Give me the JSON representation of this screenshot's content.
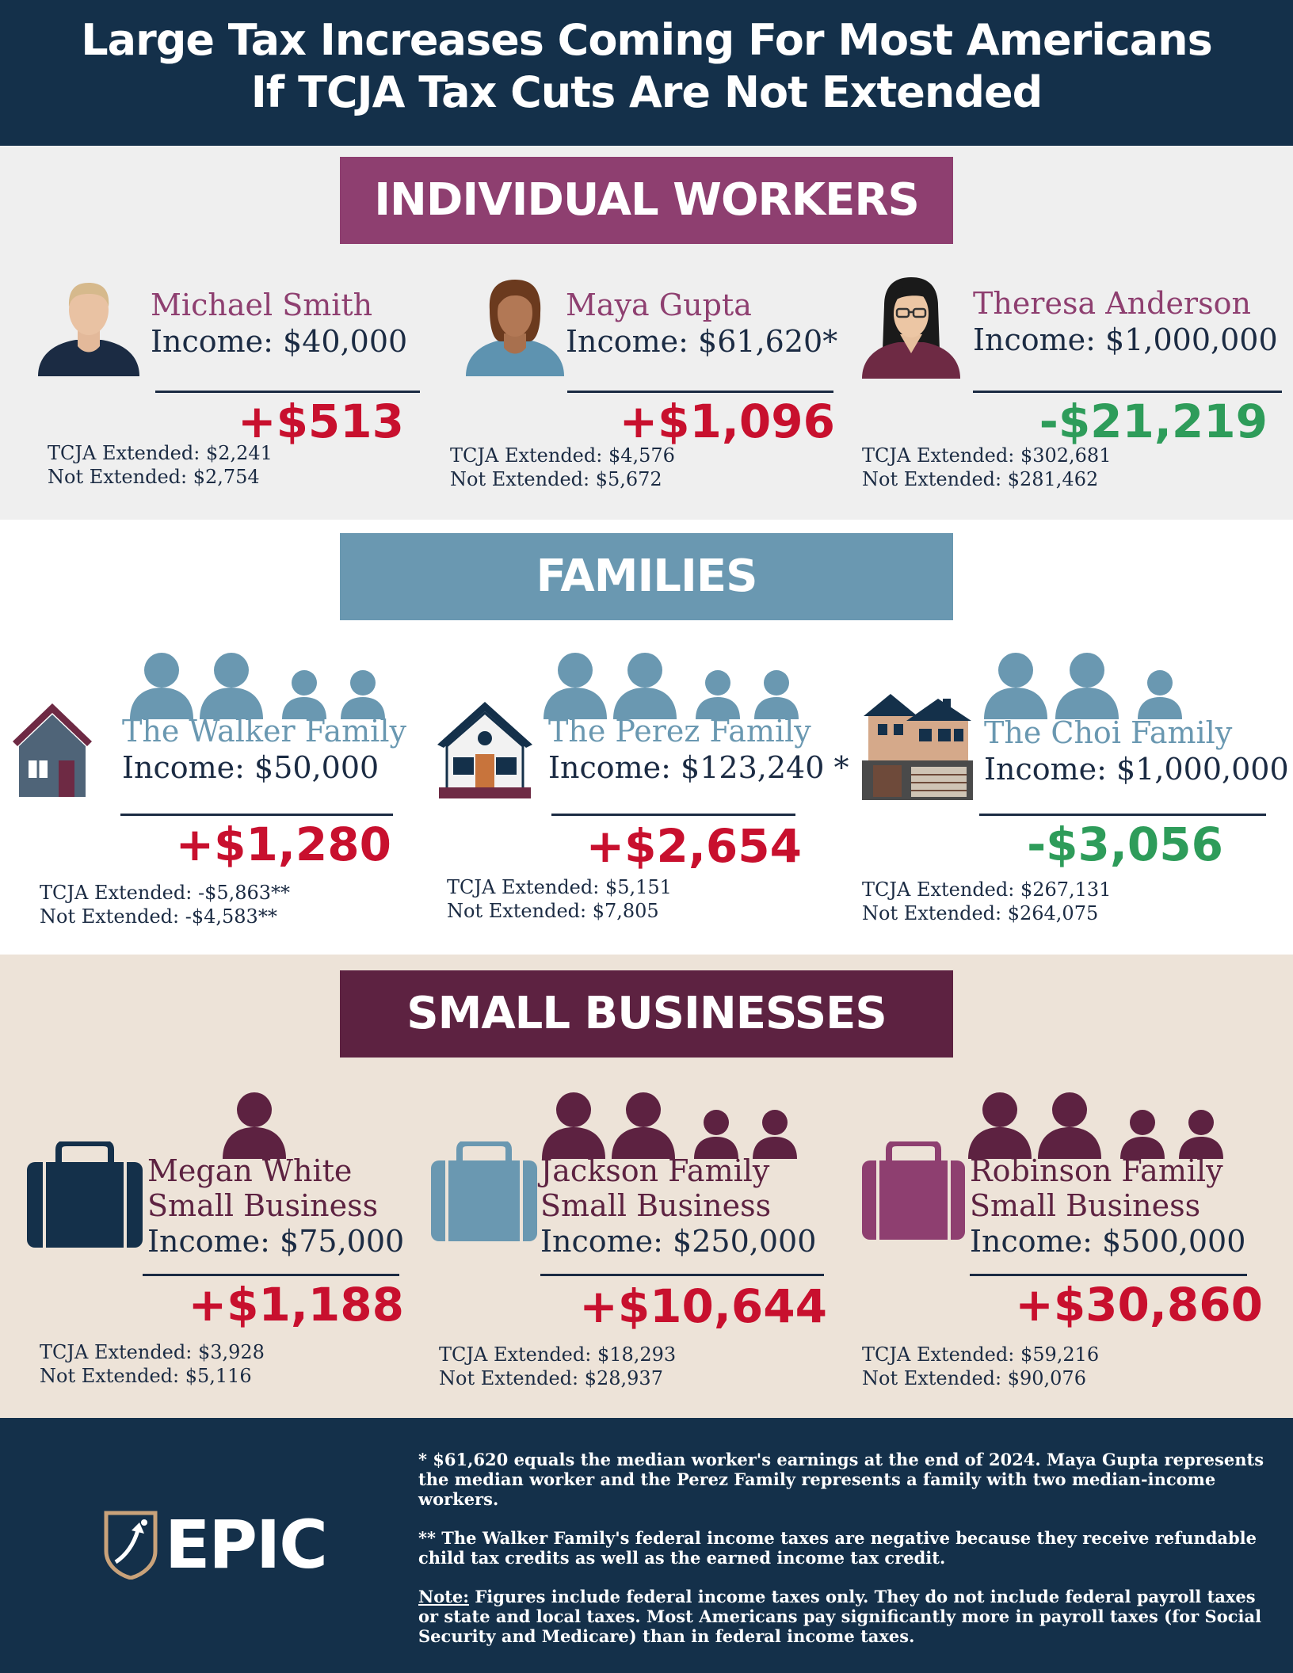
{
  "header": {
    "title_line1": "Large Tax Increases Coming For Most Americans",
    "title_line2": "If TCJA Tax Cuts Are Not Extended"
  },
  "workers": {
    "banner": "INDIVIDUAL WORKERS",
    "people": [
      {
        "name": "Michael Smith",
        "income": "Income: $40,000",
        "delta": "+$513",
        "extended": "TCJA Extended: $2,241",
        "not_extended": "Not Extended: $2,754"
      },
      {
        "name": "Maya Gupta",
        "income": "Income: $61,620*",
        "delta": "+$1,096",
        "extended": "TCJA Extended: $4,576",
        "not_extended": "Not Extended: $5,672"
      },
      {
        "name": "Theresa Anderson",
        "income": "Income: $1,000,000",
        "delta": "-$21,219",
        "extended": "TCJA Extended: $302,681",
        "not_extended": "Not Extended: $281,462"
      }
    ]
  },
  "families": {
    "banner": "FAMILIES",
    "items": [
      {
        "name": "The Walker Family",
        "income": "Income: $50,000",
        "delta": "+$1,280",
        "extended": "TCJA Extended: -$5,863**",
        "not_extended": "Not Extended: -$4,583**"
      },
      {
        "name": "The Perez Family",
        "income": "Income: $123,240 *",
        "delta": "+$2,654",
        "extended": "TCJA Extended: $5,151",
        "not_extended": "Not Extended: $7,805"
      },
      {
        "name": "The Choi Family",
        "income": "Income: $1,000,000",
        "delta": "-$3,056",
        "extended": "TCJA Extended: $267,131",
        "not_extended": "Not Extended: $264,075"
      }
    ]
  },
  "businesses": {
    "banner": "SMALL BUSINESSES",
    "items": [
      {
        "name_line1": "Megan White",
        "name_line2": "Small Business",
        "income": "Income: $75,000",
        "delta": "+$1,188",
        "extended": "TCJA Extended: $3,928",
        "not_extended": "Not Extended: $5,116"
      },
      {
        "name_line1": "Jackson Family",
        "name_line2": "Small Business",
        "income": "Income: $250,000",
        "delta": "+$10,644",
        "extended": "TCJA Extended: $18,293",
        "not_extended": "Not Extended: $28,937"
      },
      {
        "name_line1": "Robinson Family",
        "name_line2": "Small Business",
        "income": "Income: $500,000",
        "delta": "+$30,860",
        "extended": "TCJA Extended: $59,216",
        "not_extended": "Not Extended: $90,076"
      }
    ]
  },
  "footer": {
    "logo": "EPIC",
    "note1": "* $61,620 equals the median worker's earnings at the end of 2024. Maya Gupta represents the median worker and the Perez Family represents a family with two median-income workers.",
    "note2": "** The Walker Family's federal income taxes are negative because they receive refundable child tax credits as well as the earned income tax credit.",
    "note3_label": "Note:",
    "note3": " Figures include federal income taxes only. They do not include federal payroll taxes or state and local taxes. Most Americans pay significantly more in payroll taxes (for Social Security and Medicare) than in federal income taxes."
  },
  "colors": {
    "navy": "#14304a",
    "purple": "#8e3f70",
    "blue": "#6a98b1",
    "maroon": "#5d2241",
    "increase_red": "#c8102e",
    "decrease_green": "#2e9c5a"
  }
}
